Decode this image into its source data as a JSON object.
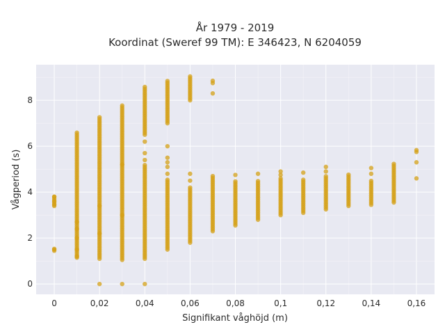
{
  "chart_data": {
    "type": "scatter",
    "title_lines": [
      "År 1979 - 2019",
      "Koordinat (Sweref 99 TM): E 346423, N 6204059"
    ],
    "xlabel": "Signifikant våghöjd (m)",
    "ylabel": "Vågperiod (s)",
    "xlim": [
      -0.008,
      0.168
    ],
    "ylim": [
      -0.45,
      9.55
    ],
    "x_ticks": [
      0,
      0.02,
      0.04,
      0.06,
      0.08,
      0.1,
      0.12,
      0.14,
      0.16
    ],
    "x_tick_labels": [
      "0",
      "0,02",
      "0,04",
      "0,06",
      "0,08",
      "0,1",
      "0,12",
      "0,14",
      "0,16"
    ],
    "y_ticks": [
      0,
      2,
      4,
      6,
      8
    ],
    "y_tick_labels": [
      "0",
      "2",
      "4",
      "6",
      "8"
    ],
    "grid": true,
    "marker_color": "#d4a017",
    "background_color": "#e8e9f2",
    "columns": [
      {
        "x": 0,
        "ranges": [
          [
            1.45,
            1.55
          ],
          [
            3.4,
            3.85
          ]
        ],
        "points": [
          1.5,
          3.45,
          3.6,
          3.8
        ]
      },
      {
        "x": 0.01,
        "ranges": [
          [
            1.15,
            6.65
          ]
        ],
        "points": [
          1.2,
          1.5,
          2.0,
          2.4,
          2.7
        ]
      },
      {
        "x": 0.02,
        "ranges": [
          [
            1.1,
            7.3
          ]
        ],
        "points": [
          0.0,
          2.2,
          3.4
        ]
      },
      {
        "x": 0.03,
        "ranges": [
          [
            1.05,
            7.8
          ]
        ],
        "points": [
          0.0,
          3.0,
          5.2
        ]
      },
      {
        "x": 0.04,
        "ranges": [
          [
            1.1,
            5.2
          ],
          [
            6.5,
            8.6
          ]
        ],
        "points": [
          0.0,
          5.4,
          5.7,
          6.2
        ]
      },
      {
        "x": 0.05,
        "ranges": [
          [
            1.5,
            4.6
          ],
          [
            7.0,
            8.85
          ]
        ],
        "points": [
          4.8,
          5.1,
          5.3,
          5.5,
          6.0
        ]
      },
      {
        "x": 0.06,
        "ranges": [
          [
            1.8,
            4.2
          ],
          [
            8.0,
            9.1
          ]
        ],
        "points": [
          4.5,
          4.8
        ]
      },
      {
        "x": 0.07,
        "ranges": [
          [
            2.3,
            4.7
          ]
        ],
        "points": [
          8.3,
          8.75,
          8.85
        ]
      },
      {
        "x": 0.08,
        "ranges": [
          [
            2.55,
            4.5
          ]
        ],
        "points": [
          4.75
        ]
      },
      {
        "x": 0.09,
        "ranges": [
          [
            2.8,
            4.55
          ]
        ],
        "points": [
          4.8
        ]
      },
      {
        "x": 0.1,
        "ranges": [
          [
            3.0,
            4.6
          ]
        ],
        "points": [
          4.75,
          4.9
        ]
      },
      {
        "x": 0.11,
        "ranges": [
          [
            3.1,
            4.6
          ]
        ],
        "points": [
          4.85
        ]
      },
      {
        "x": 0.12,
        "ranges": [
          [
            3.25,
            4.7
          ]
        ],
        "points": [
          4.9,
          5.1
        ]
      },
      {
        "x": 0.13,
        "ranges": [
          [
            3.4,
            4.8
          ]
        ],
        "points": []
      },
      {
        "x": 0.14,
        "ranges": [
          [
            3.45,
            4.55
          ]
        ],
        "points": [
          4.8,
          5.05
        ]
      },
      {
        "x": 0.15,
        "ranges": [
          [
            3.55,
            5.3
          ]
        ],
        "points": []
      },
      {
        "x": 0.16,
        "ranges": [
          [
            5.75,
            5.9
          ]
        ],
        "points": [
          4.6,
          5.3
        ]
      }
    ]
  }
}
